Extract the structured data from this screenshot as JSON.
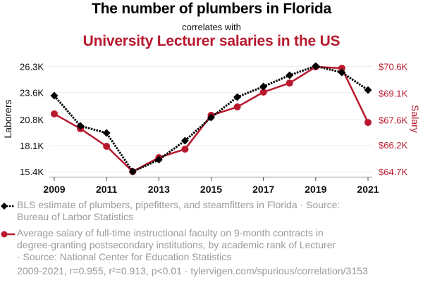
{
  "titles": {
    "main": "The number of plumbers in Florida",
    "connector": "correlates with",
    "secondary": "University Lecturer salaries in the US"
  },
  "colors": {
    "series1": "#000000",
    "series2": "#b8192e",
    "grid": "#eeeeee",
    "axis": "#aaaaaa",
    "muted_text": "#9a9a9a"
  },
  "chart_data": {
    "type": "line",
    "title": "The number of plumbers in Florida correlates with University Lecturer salaries in the US",
    "x": [
      2009,
      2010,
      2011,
      2012,
      2013,
      2014,
      2015,
      2016,
      2017,
      2018,
      2019,
      2020,
      2021
    ],
    "xticks": [
      "2009",
      "2011",
      "2013",
      "2015",
      "2017",
      "2019",
      "2021"
    ],
    "xtick_values": [
      2009,
      2011,
      2013,
      2015,
      2017,
      2019,
      2021
    ],
    "xlim": [
      2008.8,
      2021.2
    ],
    "xlabel": "",
    "grid": true,
    "legend_placement": "bottom",
    "y_left": {
      "label": "Laborers",
      "ticks": [
        "15.4K",
        "18.1K",
        "20.8K",
        "23.6K",
        "26.3K"
      ],
      "tick_values": [
        15.4,
        18.1,
        20.8,
        23.6,
        26.3
      ],
      "ylim": [
        15.4,
        26.3
      ],
      "unit": "thousands"
    },
    "y_right": {
      "label": "Salary",
      "ticks": [
        "$64.7K",
        "$66.2K",
        "$67.6K",
        "$69.1K",
        "$70.6K"
      ],
      "tick_values": [
        64.7,
        66.2,
        67.6,
        69.1,
        70.6
      ],
      "ylim": [
        64.7,
        70.6
      ],
      "unit": "thousands USD"
    },
    "series": [
      {
        "name": "BLS estimate of plumbers, pipefitters, and steamfitters in Florida",
        "axis": "left",
        "style": "dotted",
        "marker": "diamond",
        "color": "#000000",
        "values": [
          23.27,
          20.14,
          19.41,
          15.4,
          16.64,
          18.61,
          21.01,
          23.13,
          24.22,
          25.39,
          26.34,
          25.68,
          23.86
        ]
      },
      {
        "name": "Average salary of full-time instructional faculty on 9-month contracts in degree-granting postsecondary institutions, by academic rank of Lecturer",
        "axis": "right",
        "style": "solid",
        "marker": "circle",
        "color": "#b8192e",
        "values": [
          67.94,
          67.11,
          66.12,
          64.7,
          65.49,
          65.96,
          67.86,
          68.33,
          69.16,
          69.67,
          70.58,
          70.5,
          67.46
        ]
      }
    ]
  },
  "legend": [
    {
      "text": "BLS estimate of plumbers, pipefitters, and steamfitters in Florida · Source: Bureau of Larbor Statistics"
    },
    {
      "text": "Average salary of full-time instructional faculty on 9-month contracts in degree-granting postsecondary institutions, by academic rank of Lecturer · Source: National Center for Education Statistics"
    }
  ],
  "footer": "2009-2021, r=0.955, r²=0.913, p<0.01 · tylervigen.com/spurious/correlation/3153"
}
